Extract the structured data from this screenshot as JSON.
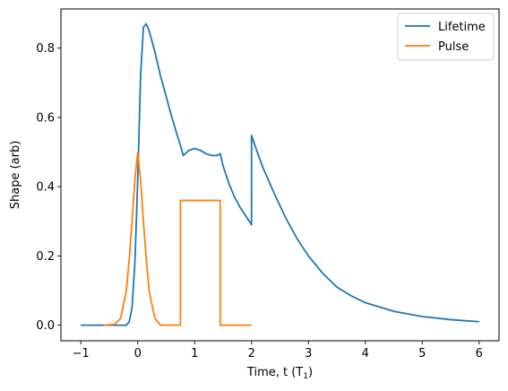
{
  "chart_data": {
    "type": "line",
    "xlabel": "Time, t (T",
    "xlabel_sub": "1",
    "xlabel_close": ")",
    "ylabel": "Shape (arb)",
    "xlim": [
      -1.35,
      6.35
    ],
    "ylim": [
      -0.045,
      0.913
    ],
    "xticks": [
      -1,
      0,
      1,
      2,
      3,
      4,
      5,
      6
    ],
    "xtick_labels": [
      "−1",
      "0",
      "1",
      "2",
      "3",
      "4",
      "5",
      "6"
    ],
    "yticks": [
      0.0,
      0.2,
      0.4,
      0.6,
      0.8
    ],
    "ytick_labels": [
      "0.0",
      "0.2",
      "0.4",
      "0.6",
      "0.8"
    ],
    "grid": false,
    "legend_position": "top-right",
    "series": [
      {
        "name": "Lifetime",
        "color": "#1f77b4",
        "x": [
          -1.0,
          -0.5,
          -0.2,
          -0.15,
          -0.1,
          -0.05,
          0.0,
          0.05,
          0.1,
          0.15,
          0.2,
          0.3,
          0.4,
          0.5,
          0.6,
          0.7,
          0.75,
          0.8,
          0.9,
          1.0,
          1.1,
          1.2,
          1.3,
          1.4,
          1.45,
          1.5,
          1.6,
          1.7,
          1.8,
          1.9,
          2.0,
          2.0,
          2.1,
          2.2,
          2.4,
          2.6,
          2.8,
          3.0,
          3.25,
          3.5,
          3.75,
          4.0,
          4.5,
          5.0,
          5.5,
          6.0
        ],
        "values": [
          0.0,
          0.0,
          0.0,
          0.01,
          0.05,
          0.18,
          0.42,
          0.72,
          0.86,
          0.87,
          0.85,
          0.79,
          0.72,
          0.66,
          0.6,
          0.545,
          0.52,
          0.49,
          0.505,
          0.51,
          0.505,
          0.495,
          0.49,
          0.49,
          0.495,
          0.46,
          0.41,
          0.37,
          0.34,
          0.315,
          0.29,
          0.548,
          0.5,
          0.455,
          0.38,
          0.31,
          0.25,
          0.2,
          0.15,
          0.11,
          0.085,
          0.065,
          0.04,
          0.025,
          0.016,
          0.01
        ]
      },
      {
        "name": "Pulse",
        "color": "#ff7f0e",
        "x": [
          -0.6,
          -0.4,
          -0.3,
          -0.2,
          -0.15,
          -0.1,
          -0.05,
          0.0,
          0.05,
          0.1,
          0.15,
          0.2,
          0.3,
          0.4,
          0.75,
          0.75,
          1.45,
          1.45,
          2.0
        ],
        "values": [
          0.0,
          0.003,
          0.02,
          0.1,
          0.19,
          0.3,
          0.42,
          0.5,
          0.42,
          0.3,
          0.19,
          0.1,
          0.02,
          0.0,
          0.0,
          0.36,
          0.36,
          0.0,
          0.0
        ]
      }
    ]
  }
}
